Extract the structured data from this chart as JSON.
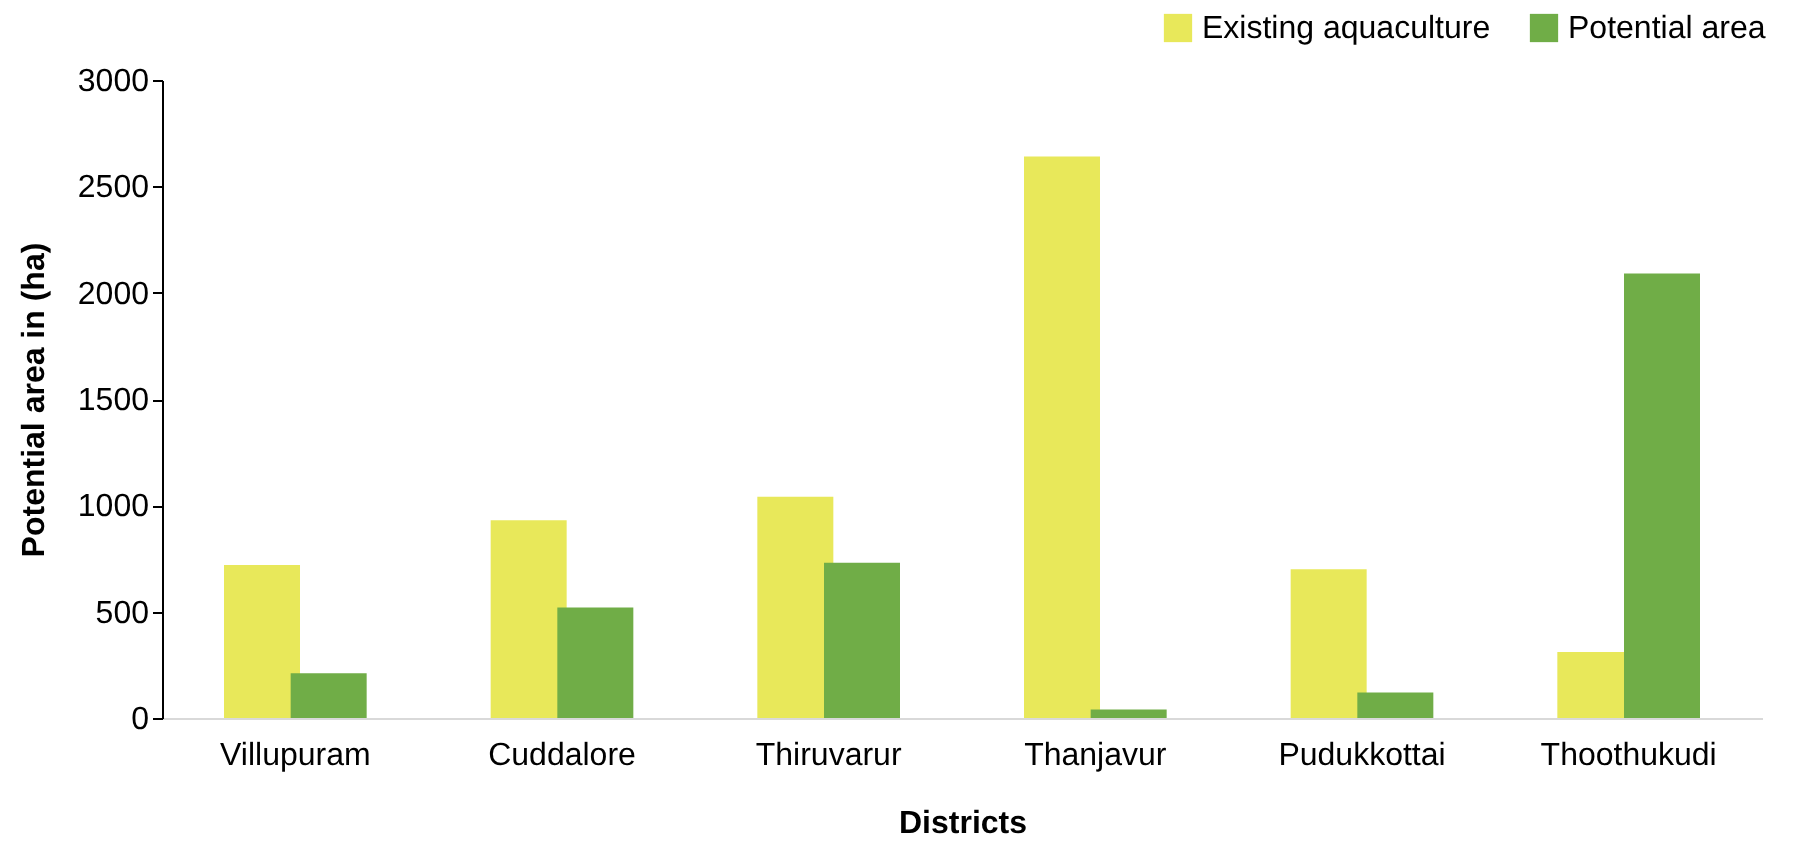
{
  "chart_data": {
    "type": "bar",
    "xlabel": "Districts",
    "ylabel": "Potential area in (ha)",
    "categories": [
      "Villupuram",
      "Cuddalore",
      "Thiruvarur",
      "Thanjavur",
      "Pudukkottai",
      "Thoothukudi"
    ],
    "series": [
      {
        "name": "Existing aquaculture",
        "color": "#e8e85a",
        "values": [
          720,
          930,
          1040,
          2640,
          700,
          310
        ]
      },
      {
        "name": "Potential area",
        "color": "#70ad47",
        "values": [
          210,
          520,
          730,
          40,
          120,
          2090
        ]
      }
    ],
    "ylim": [
      0,
      3000
    ],
    "yticks": [
      0,
      500,
      1000,
      1500,
      2000,
      2500,
      3000
    ],
    "grid": false,
    "legend": "top right"
  }
}
